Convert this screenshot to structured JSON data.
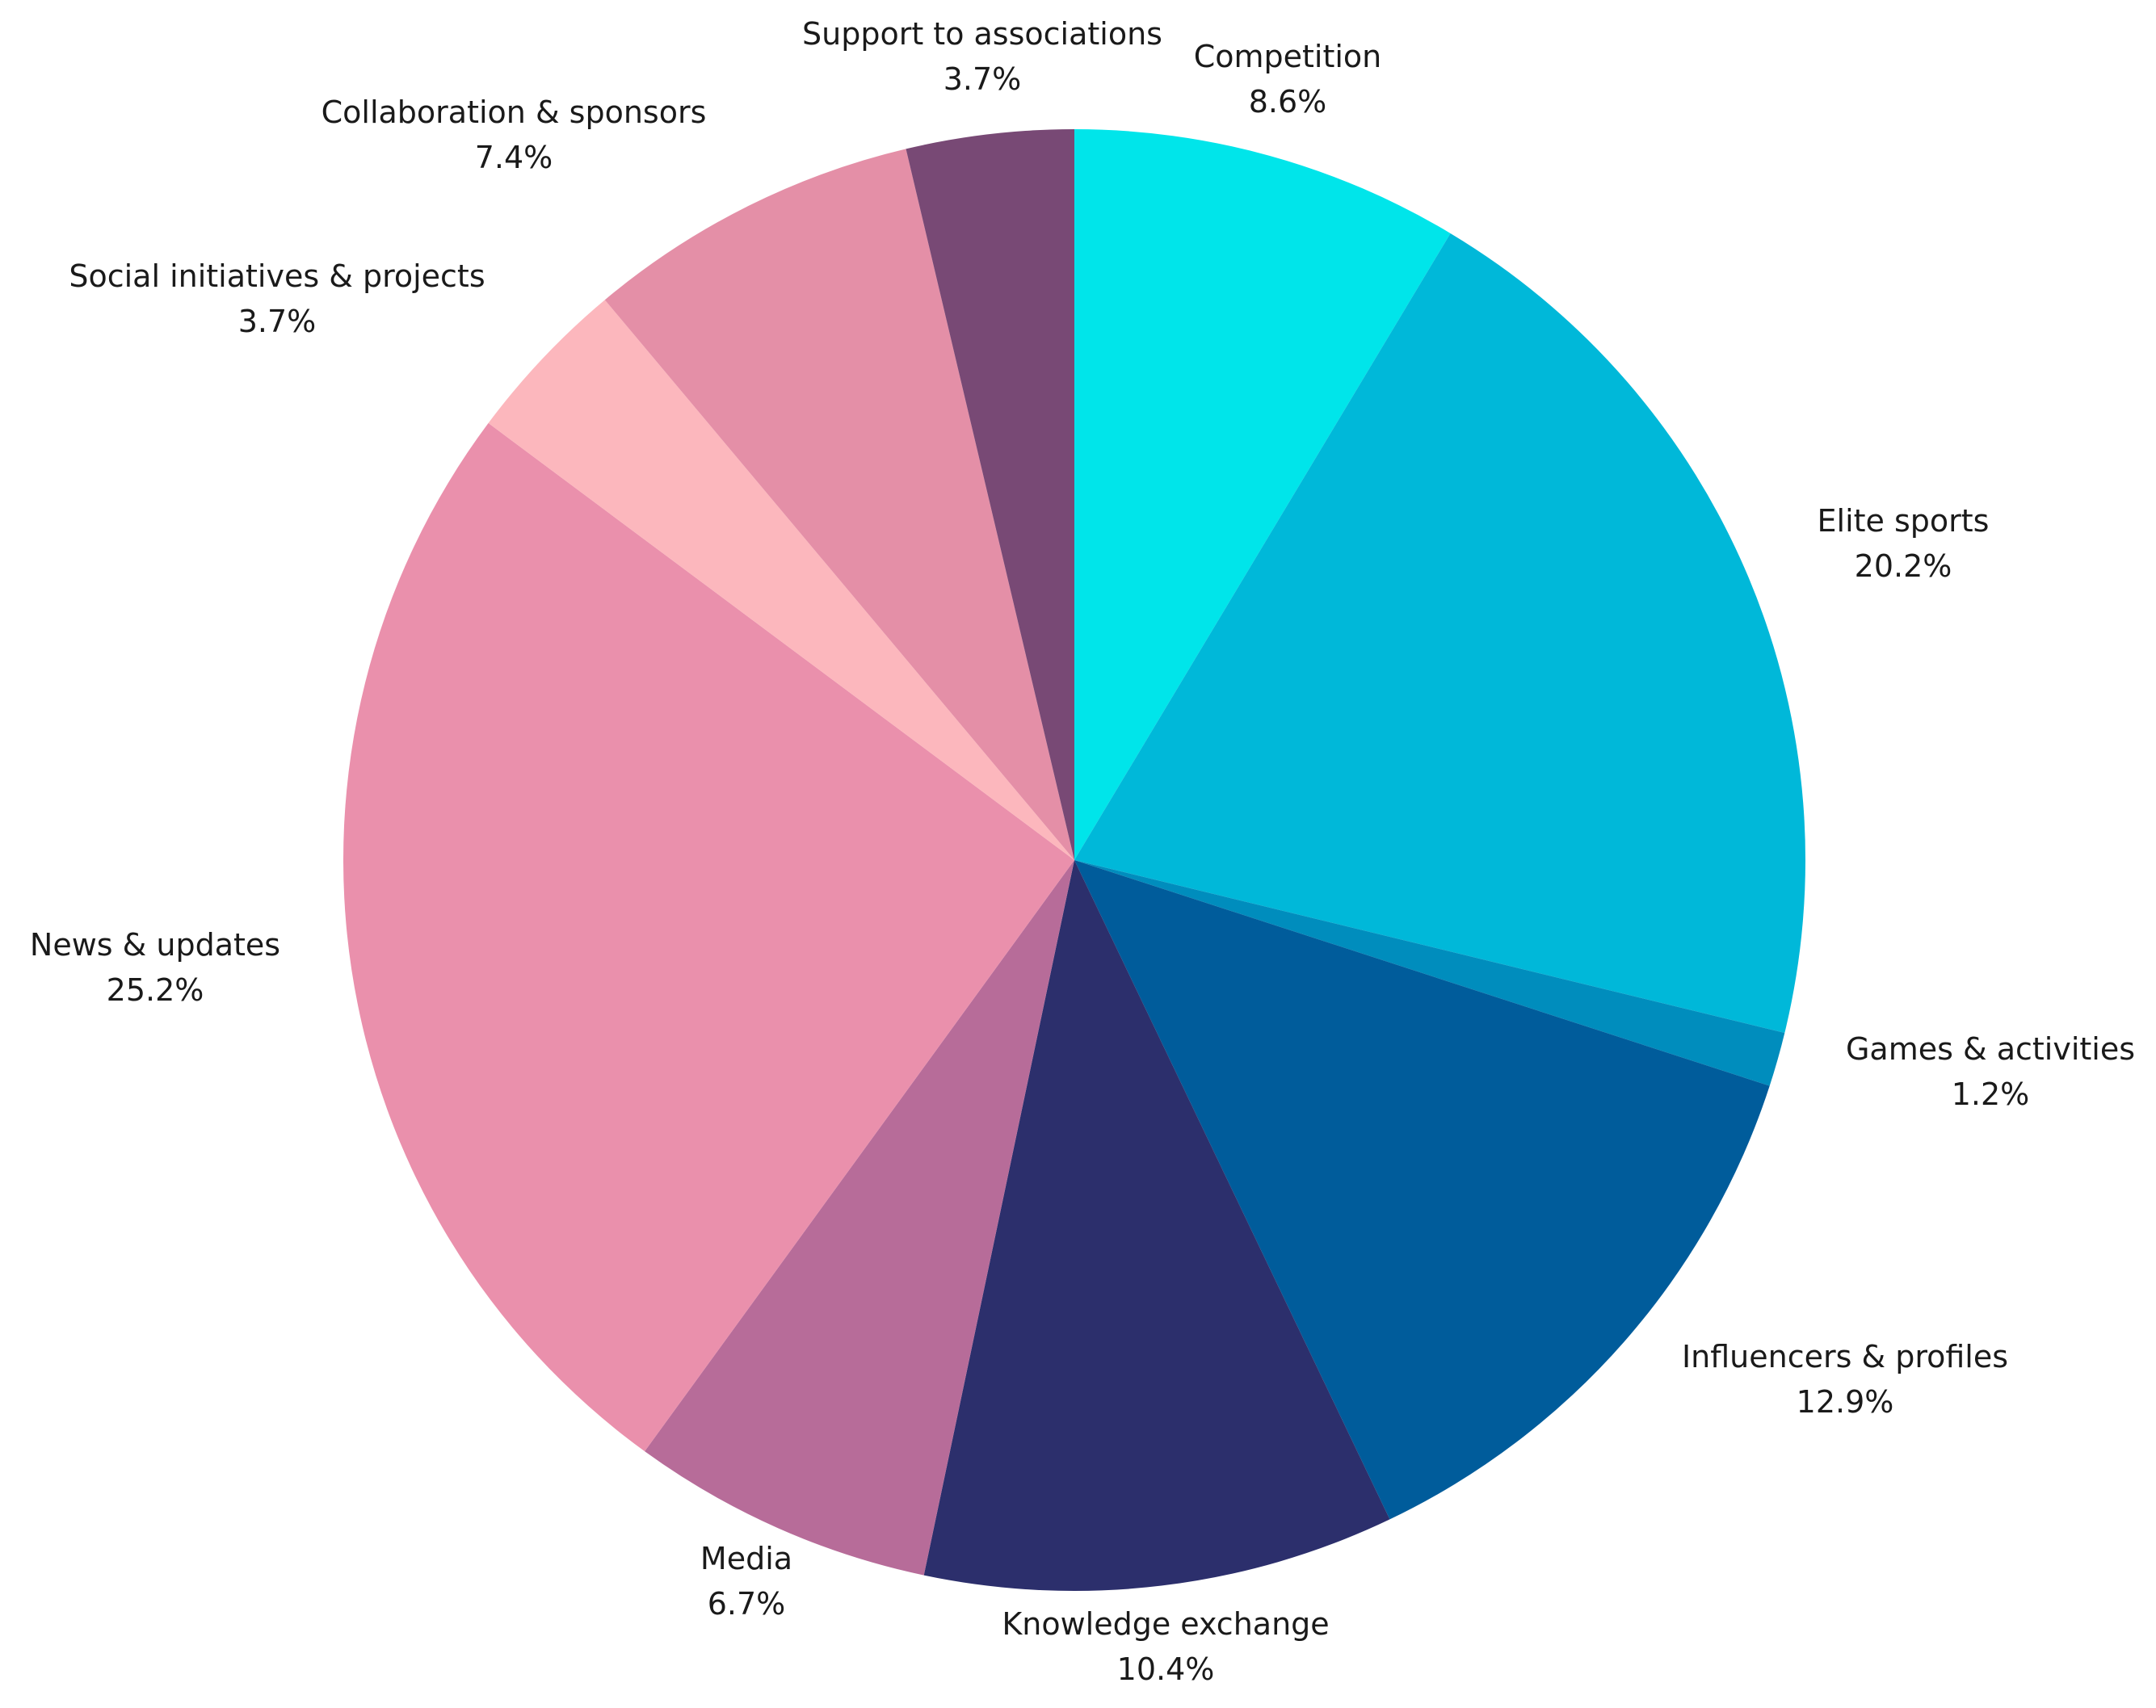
{
  "chart_data": {
    "type": "pie",
    "title": "",
    "start_angle_deg": 0,
    "direction": "clockwise",
    "slices": [
      {
        "label": "Competition",
        "value": 8.6,
        "value_label": "8.6%",
        "color": "#00e5ea"
      },
      {
        "label": "Elite sports",
        "value": 20.2,
        "value_label": "20.2%",
        "color": "#00b8d9"
      },
      {
        "label": "Games & activities",
        "value": 1.2,
        "value_label": "1.2%",
        "color": "#008dbd"
      },
      {
        "label": "Influencers & profiles",
        "value": 12.9,
        "value_label": "12.9%",
        "color": "#005c9b"
      },
      {
        "label": "Knowledge exchange",
        "value": 10.4,
        "value_label": "10.4%",
        "color": "#2c2f6c"
      },
      {
        "label": "Media",
        "value": 6.7,
        "value_label": "6.7%",
        "color": "#b76c99"
      },
      {
        "label": "News & updates",
        "value": 25.2,
        "value_label": "25.2%",
        "color": "#ea90ac"
      },
      {
        "label": "Social initiatives & projects",
        "value": 3.7,
        "value_label": "3.7%",
        "color": "#fcb7bd"
      },
      {
        "label": "Collaboration & sponsors",
        "value": 7.4,
        "value_label": "7.4%",
        "color": "#e48fa7"
      },
      {
        "label": "Support to associations",
        "value": 3.7,
        "value_label": "3.7%",
        "color": "#784975"
      }
    ]
  }
}
